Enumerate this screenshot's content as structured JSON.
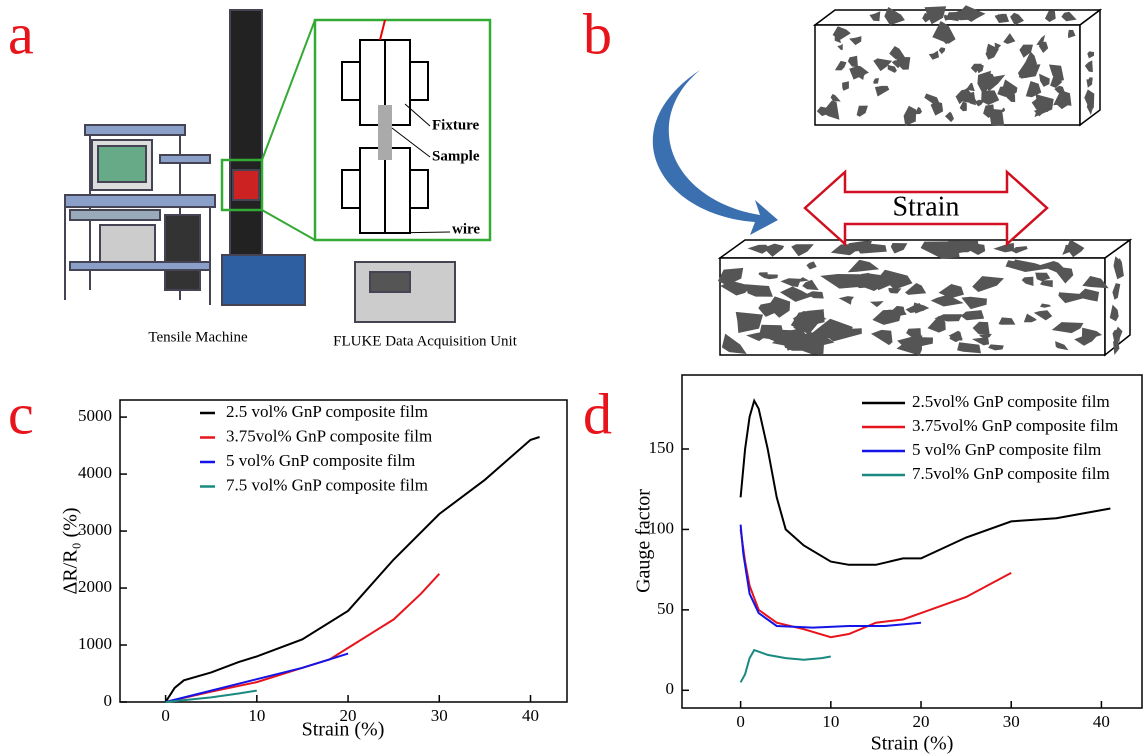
{
  "labels": {
    "a": "a",
    "b": "b",
    "c": "c",
    "d": "d"
  },
  "figure_a": {
    "fixture": "Fixture",
    "sample": "Sample",
    "wire": "wire",
    "machine": "Tensile Machine",
    "daq": "FLUKE Data Acquisition Unit"
  },
  "figure_b": {
    "strain": "Strain"
  },
  "chart_data": [
    {
      "type": "line",
      "xlabel": "Strain (%)",
      "ylabel": "ΔR/R₀ (%)",
      "xlim": [
        -5,
        44
      ],
      "ylim": [
        0,
        5300
      ],
      "xticks": [
        0,
        10,
        20,
        30,
        40
      ],
      "yticks": [
        0,
        1000,
        2000,
        3000,
        4000,
        5000
      ],
      "series": [
        {
          "name": "2.5 vol% GnP composite film",
          "color": "#000000",
          "x": [
            0,
            1,
            2,
            5,
            8,
            10,
            15,
            20,
            25,
            30,
            35,
            40,
            41
          ],
          "y": [
            0,
            250,
            380,
            520,
            700,
            800,
            1100,
            1600,
            2500,
            3300,
            3900,
            4600,
            4650
          ]
        },
        {
          "name": "3.75vol% GnP composite film",
          "color": "#e8141c",
          "x": [
            0,
            5,
            10,
            15,
            18,
            20,
            25,
            28,
            30
          ],
          "y": [
            0,
            180,
            350,
            600,
            750,
            950,
            1450,
            1900,
            2250
          ]
        },
        {
          "name": "5 vol% GnP composite film",
          "color": "#1414e8",
          "x": [
            0,
            5,
            10,
            15,
            18,
            20
          ],
          "y": [
            0,
            200,
            400,
            600,
            750,
            850
          ]
        },
        {
          "name": "7.5 vol% GnP composite film",
          "color": "#1a8a80",
          "x": [
            0,
            5,
            8,
            10
          ],
          "y": [
            0,
            80,
            150,
            200
          ]
        }
      ]
    },
    {
      "type": "line",
      "xlabel": "Strain (%)",
      "ylabel": "Gauge factor",
      "xlim": [
        -6.5,
        44.5
      ],
      "ylim": [
        -11,
        196
      ],
      "xticks": [
        0,
        10,
        20,
        30,
        40
      ],
      "yticks": [
        0,
        50,
        100,
        150
      ],
      "series": [
        {
          "name": "2.5vol% GnP composite film",
          "color": "#000000",
          "x": [
            0,
            0.5,
            1,
            1.5,
            2,
            3,
            4,
            5,
            7,
            10,
            12,
            15,
            18,
            20,
            25,
            30,
            35,
            40,
            41
          ],
          "y": [
            120,
            150,
            170,
            180,
            175,
            150,
            120,
            100,
            90,
            80,
            78,
            78,
            82,
            82,
            95,
            105,
            107,
            112,
            113
          ]
        },
        {
          "name": "3.75vol% GnP composite film",
          "color": "#e8141c",
          "x": [
            0,
            0.5,
            1,
            2,
            4,
            7,
            10,
            12,
            15,
            18,
            20,
            25,
            30
          ],
          "y": [
            100,
            80,
            65,
            50,
            42,
            38,
            33,
            35,
            42,
            44,
            48,
            58,
            73
          ]
        },
        {
          "name": "5 vol% GnP composite film",
          "color": "#1414e8",
          "x": [
            0,
            0.3,
            1,
            2,
            4,
            8,
            12,
            16,
            20
          ],
          "y": [
            103,
            85,
            60,
            48,
            40,
            39,
            40,
            40,
            42
          ]
        },
        {
          "name": "7.5vol% GnP composite film",
          "color": "#1a8a80",
          "x": [
            0,
            0.5,
            1,
            1.5,
            3,
            5,
            7,
            9,
            10
          ],
          "y": [
            5,
            10,
            20,
            25,
            22,
            20,
            19,
            20,
            21
          ]
        }
      ]
    }
  ]
}
